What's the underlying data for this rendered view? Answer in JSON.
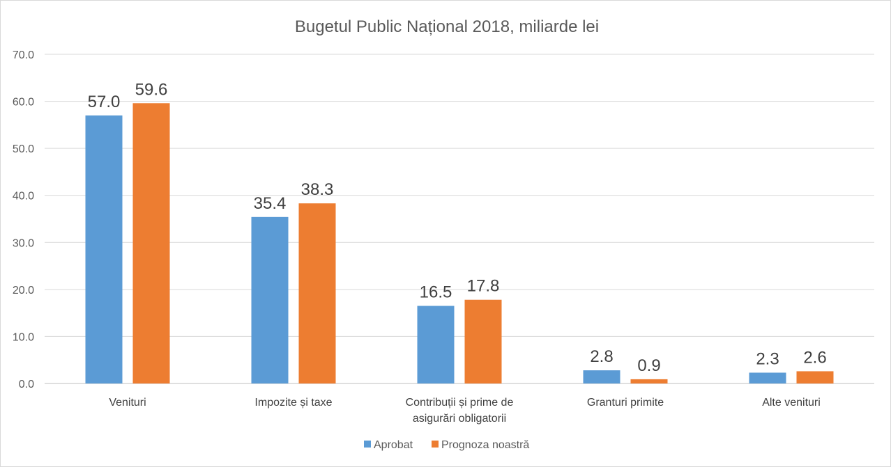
{
  "chart_data": {
    "type": "bar",
    "title": "Bugetul Public Național 2018, miliarde lei",
    "categories": [
      [
        "Venituri"
      ],
      [
        "Impozite și taxe"
      ],
      [
        "Contribuții și prime de",
        "asigurări obligatorii"
      ],
      [
        "Granturi primite"
      ],
      [
        "Alte venituri"
      ]
    ],
    "series": [
      {
        "name": "Aprobat",
        "color": "#5b9bd5",
        "values": [
          57.0,
          35.4,
          16.5,
          2.8,
          2.3
        ]
      },
      {
        "name": "Prognoza noastră",
        "color": "#ed7d31",
        "values": [
          59.6,
          38.3,
          17.8,
          0.9,
          2.6
        ]
      }
    ],
    "ylim": [
      0,
      70
    ],
    "yticks": [
      "0.0",
      "10.0",
      "20.0",
      "30.0",
      "40.0",
      "50.0",
      "60.0",
      "70.0"
    ],
    "grid": true,
    "legend_position": "bottom"
  }
}
